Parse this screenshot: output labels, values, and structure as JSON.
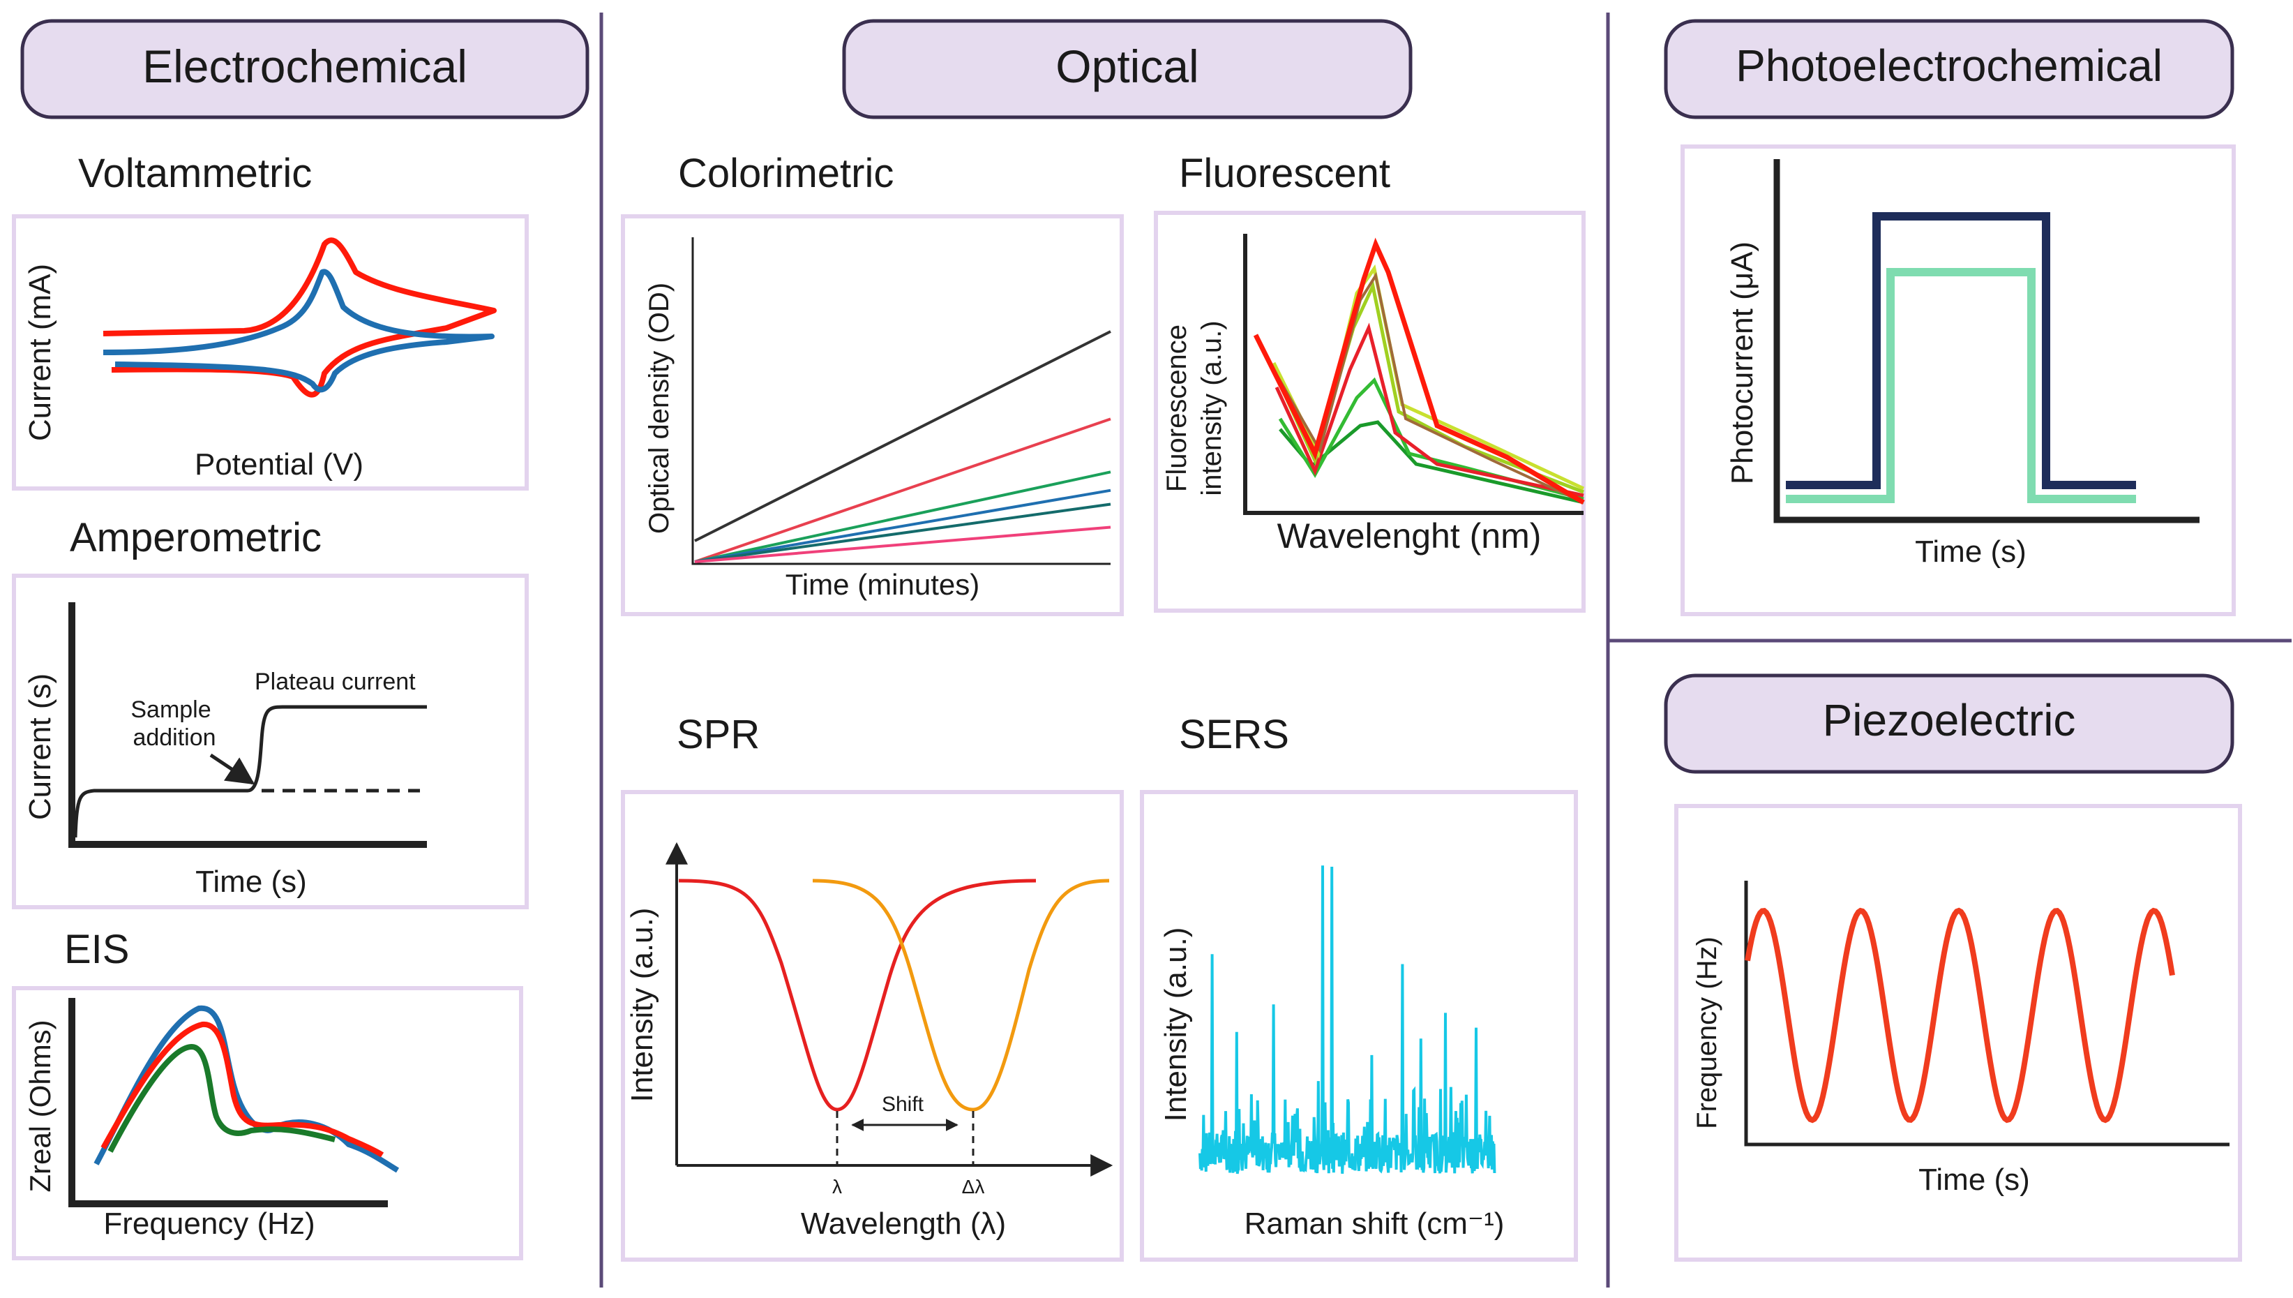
{
  "sections": {
    "electrochemical": "Electrochemical",
    "optical": "Optical",
    "photoelectrochemical": "Photoelectrochemical",
    "piezoelectric": "Piezoelectric"
  },
  "voltammetric": {
    "title": "Voltammetric",
    "ylabel": "Current (mA)",
    "xlabel": "Potential (V)"
  },
  "amperometric": {
    "title": "Amperometric",
    "ylabel": "Current (s)",
    "xlabel": "Time (s)",
    "plateau_label": "Plateau current",
    "sample_label_1": "Sample",
    "sample_label_2": "addition"
  },
  "eis": {
    "title": "EIS",
    "ylabel": "Zreal (Ohms)",
    "xlabel": "Frequency (Hz)"
  },
  "colorimetric": {
    "title": "Colorimetric",
    "ylabel": "Optical density (OD)",
    "xlabel": "Time (minutes)",
    "line_colors": [
      "#333333",
      "#e8404f",
      "#1aa05a",
      "#1f6fb0",
      "#146b6b",
      "#f0407a"
    ],
    "slopes": [
      1.0,
      0.62,
      0.39,
      0.31,
      0.25,
      0.15
    ]
  },
  "fluorescent": {
    "title": "Fluorescent",
    "ylabel_1": "Fluorescence",
    "ylabel_2": "intensity (a.u.)",
    "xlabel": "Wavelenght (nm)"
  },
  "spr": {
    "title": "SPR",
    "ylabel": "Intensity (a.u.)",
    "xlabel": "Wavelength (λ)",
    "shift_label": "Shift",
    "lambda_label": "λ",
    "delta_lambda_label": "Δλ"
  },
  "sers": {
    "title": "SERS",
    "ylabel": "Intensity (a.u.)",
    "xlabel": "Raman shift (cm⁻¹)"
  },
  "photo": {
    "ylabel": "Photocurrent (μA)",
    "xlabel": "Time (s)"
  },
  "piezo": {
    "ylabel": "Frequency (Hz)",
    "xlabel": "Time (s)"
  },
  "colors": {
    "pill_fill": "#e6dcef",
    "pill_stroke": "#3a2f4f",
    "panel_stroke": "#e3d3ee",
    "divider": "#5b4a78",
    "red": "#ff1a0a",
    "blue": "#1f6fb0",
    "green": "#1a7a2a",
    "dark_navy": "#1e2d5a",
    "mint": "#7fdcb0",
    "spr_red": "#e62020",
    "spr_orange": "#f29a0f",
    "sers_cyan": "#16c8e6",
    "piezo_red": "#f03c1e"
  }
}
